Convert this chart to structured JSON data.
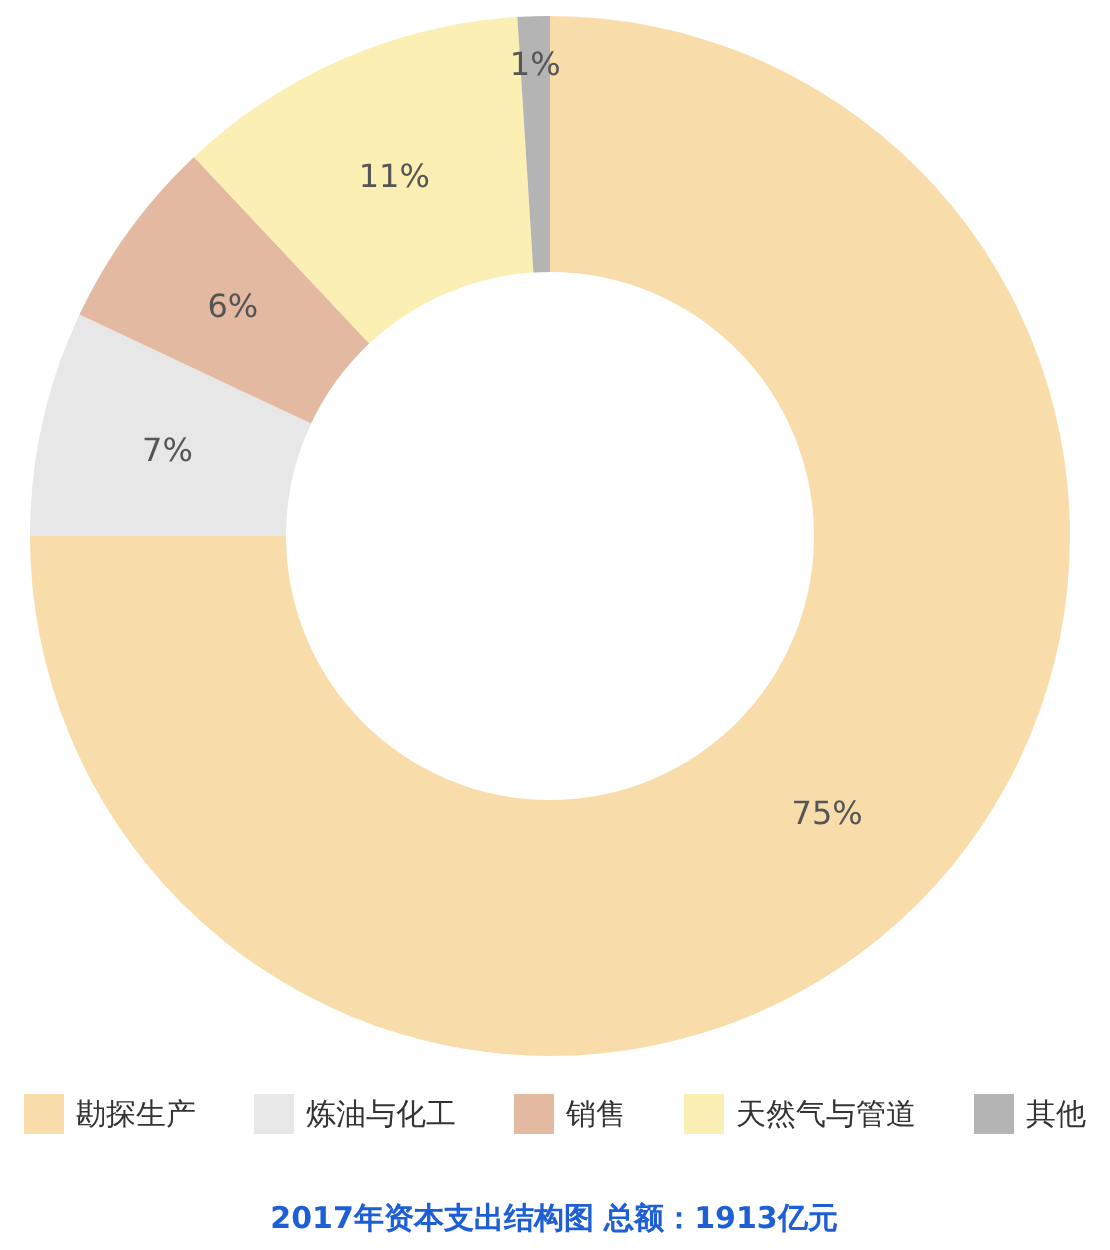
{
  "chart_data": {
    "type": "donut",
    "title": "2017年资本支出结构图 总额：1913亿元",
    "categories": [
      "勘探生产",
      "炼油与化工",
      "销售",
      "天然气与管道",
      "其他"
    ],
    "values": [
      75,
      7,
      6,
      11,
      1
    ],
    "value_labels": [
      "75%",
      "7%",
      "6%",
      "11%",
      "1%"
    ],
    "colors": [
      "#f8ddab",
      "#e8e7e7",
      "#e3b9a1",
      "#fcefb3",
      "#b4b4b4"
    ],
    "legend": "bottom"
  }
}
